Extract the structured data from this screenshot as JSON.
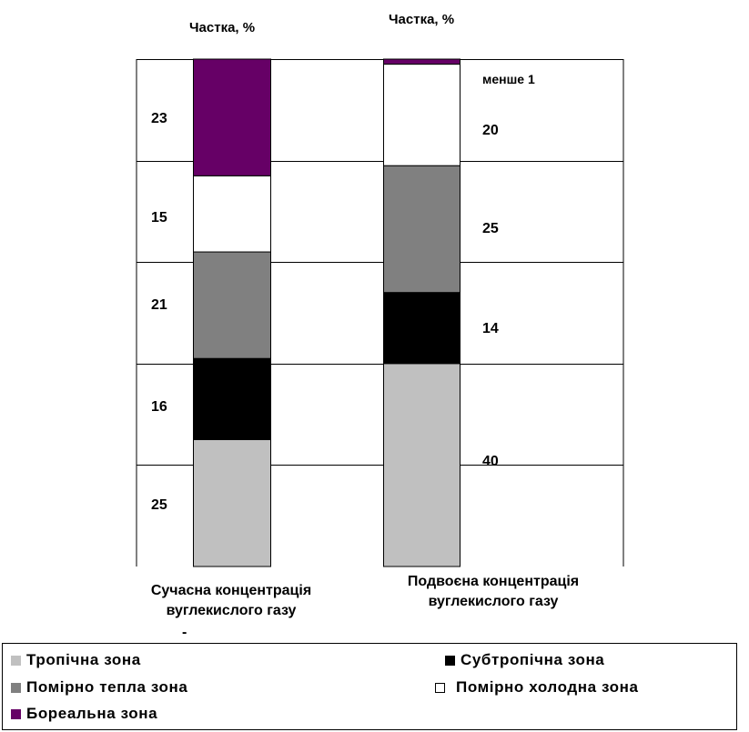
{
  "chart_data": {
    "type": "bar",
    "stacked": true,
    "categories": [
      "Сучасна концентрація вуглекислого газу",
      "Подвоєна концентрація вуглекислого газу"
    ],
    "category_lines": [
      [
        "Сучасна концентрація",
        "вуглекислого газу"
      ],
      [
        "Подвоєна концентрація",
        "вуглекислого газу"
      ]
    ],
    "header_labels": [
      "Частка, %",
      "Частка, %"
    ],
    "ylim": [
      0,
      100
    ],
    "grid": true,
    "series": [
      {
        "name": "Тропічна зона",
        "color": "#c0c0c0",
        "values": [
          25,
          40
        ]
      },
      {
        "name": "Субтропічна зона",
        "color": "#000000",
        "values": [
          16,
          14
        ]
      },
      {
        "name": "Помірно тепла зона",
        "color": "#808080",
        "values": [
          21,
          25
        ]
      },
      {
        "name": "Помірно холодна зона",
        "color": "#ffffff",
        "values": [
          15,
          20
        ]
      },
      {
        "name": "Бореальна зона",
        "color": "#660066",
        "values": [
          23,
          1
        ]
      }
    ],
    "data_labels": [
      [
        "25",
        "16",
        "21",
        "15",
        "23"
      ],
      [
        "40",
        "14",
        "25",
        "20",
        "менше 1"
      ]
    ],
    "legend_position": "bottom"
  },
  "footnote_mark": "-"
}
